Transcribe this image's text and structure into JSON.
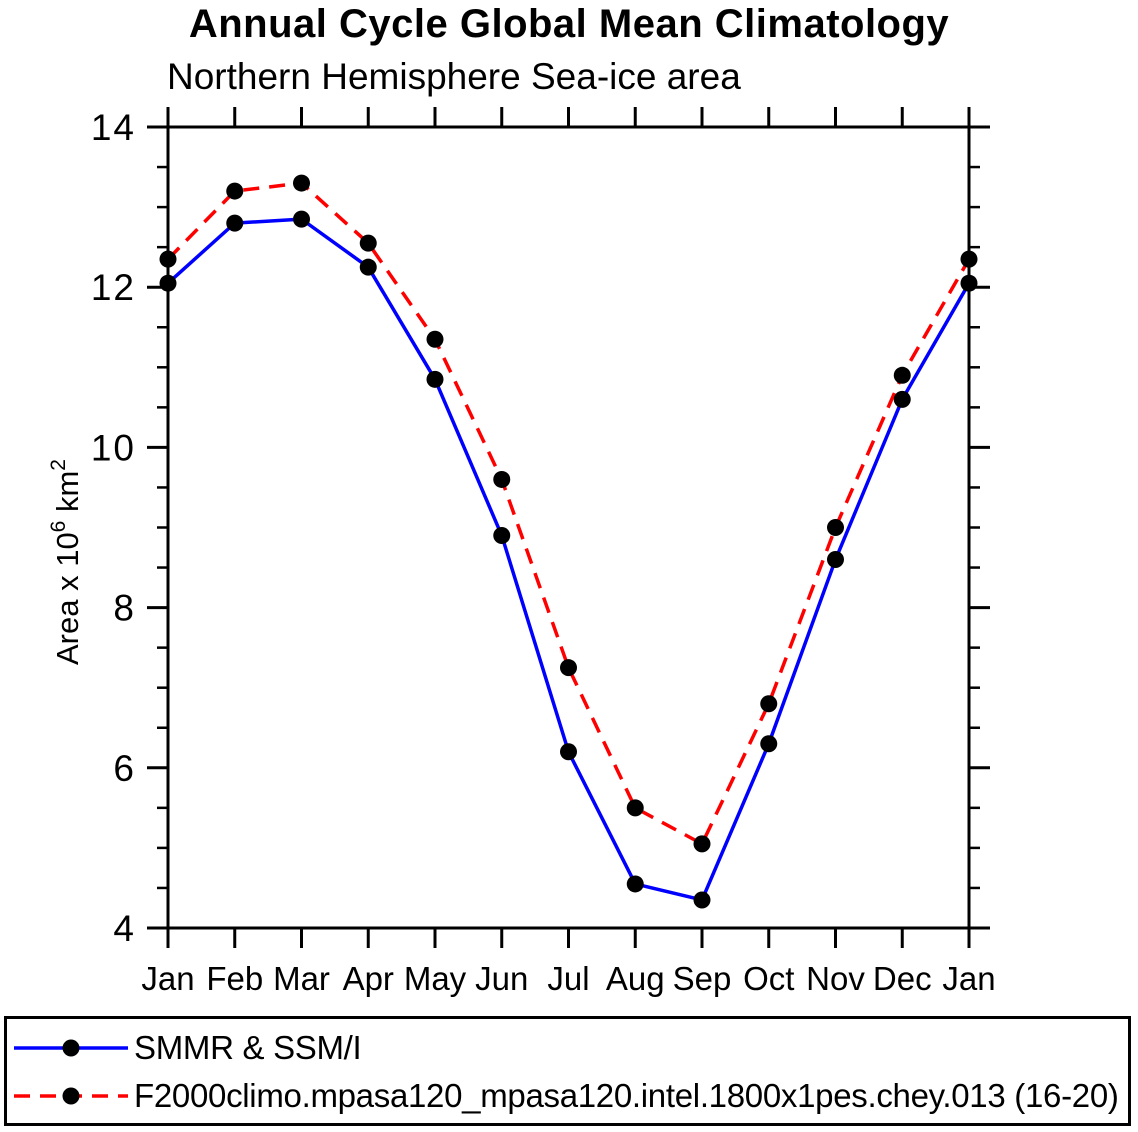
{
  "chart_data": {
    "type": "line",
    "title": "Annual Cycle Global Mean Climatology",
    "subtitle": "Northern Hemisphere Sea-ice area",
    "categories": [
      "Jan",
      "Feb",
      "Mar",
      "Apr",
      "May",
      "Jun",
      "Jul",
      "Aug",
      "Sep",
      "Oct",
      "Nov",
      "Dec",
      "Jan"
    ],
    "xlabel": "",
    "ylabel_plain": "Area x 10^6 km^2",
    "ylabel_parts": [
      {
        "text": "Area x 10",
        "sup": false
      },
      {
        "text": "6",
        "sup": true
      },
      {
        "text": " km",
        "sup": false
      },
      {
        "text": "2",
        "sup": true
      }
    ],
    "ylim": [
      4,
      14
    ],
    "yticks_major": [
      4,
      6,
      8,
      10,
      12,
      14
    ],
    "ytick_minor_step": 0.5,
    "grid": false,
    "legend_position": "bottom",
    "marker": {
      "shape": "circle",
      "color": "#000000"
    },
    "series": [
      {
        "name": "SMMR & SSM/I",
        "color": "#0000ff",
        "line_style": "solid",
        "dasharray": "none",
        "marker_color": "#000000",
        "values": [
          12.05,
          12.8,
          12.85,
          12.25,
          10.85,
          8.9,
          6.2,
          4.55,
          4.35,
          6.3,
          8.6,
          10.6,
          12.05
        ]
      },
      {
        "name": "F2000climo.mpasa120_mpasa120.intel.1800x1pes.chey.013 (16-20)",
        "color": "#ff0000",
        "line_style": "dashed",
        "dasharray": "16 10",
        "marker_color": "#000000",
        "values": [
          12.35,
          13.2,
          13.3,
          12.55,
          11.35,
          9.6,
          7.25,
          5.5,
          5.05,
          6.8,
          9.0,
          10.9,
          12.35
        ]
      }
    ]
  }
}
